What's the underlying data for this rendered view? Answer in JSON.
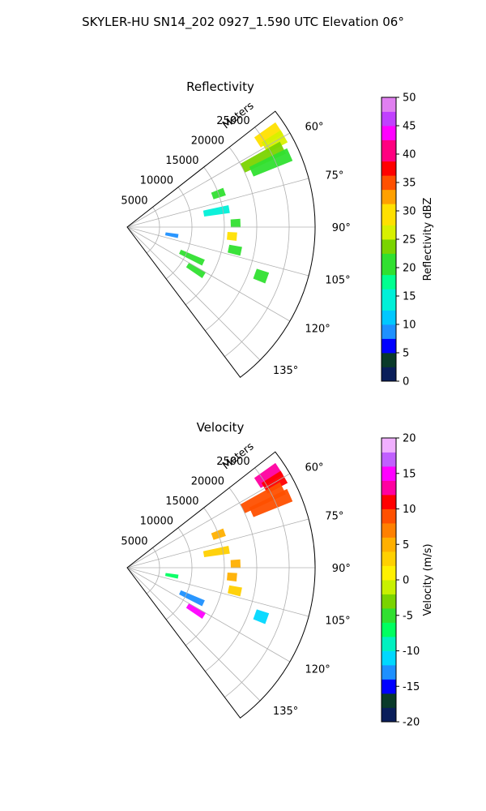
{
  "figure": {
    "title": "SKYLER-HU  SN14_202  0927_1.590 UTC Elevation 06°"
  },
  "chart_data": [
    {
      "type": "heatmap",
      "panel": "reflectivity",
      "projection": "polar-sector",
      "title": "Reflectivity",
      "range_label": "Meters",
      "range_ticks": [
        5000,
        10000,
        15000,
        20000,
        25000
      ],
      "range_limit": [
        0,
        29000
      ],
      "azimuth_ticks": [
        60,
        75,
        90,
        105,
        120,
        135
      ],
      "azimuth_limit": [
        52,
        143
      ],
      "grid": true,
      "colorbar": {
        "label": "Reflectivity dBZ",
        "range": [
          0,
          50
        ],
        "ticks": [
          0,
          5,
          10,
          15,
          20,
          25,
          30,
          35,
          40,
          45,
          50
        ]
      },
      "echoes": [
        {
          "az": 57,
          "r": [
            24000,
            28000
          ],
          "value": 30
        },
        {
          "az": 60,
          "r": [
            24500,
            28000
          ],
          "value": 27
        },
        {
          "az": 63,
          "r": [
            20000,
            27000
          ],
          "value": 22
        },
        {
          "az": 66,
          "r": [
            21000,
            27500
          ],
          "value": 20
        },
        {
          "az": 70,
          "r": [
            14000,
            16000
          ],
          "value": 20
        },
        {
          "az": 80,
          "r": [
            12000,
            16000
          ],
          "value": 14
        },
        {
          "az": 88,
          "r": [
            16000,
            17500
          ],
          "value": 21
        },
        {
          "az": 95,
          "r": [
            15500,
            17000
          ],
          "value": 28
        },
        {
          "az": 102,
          "r": [
            16000,
            18000
          ],
          "value": 21
        },
        {
          "az": 100,
          "r": [
            6000,
            8000
          ],
          "value": 8
        },
        {
          "az": 115,
          "r": [
            9000,
            13000
          ],
          "value": 20
        },
        {
          "az": 122,
          "r": [
            11000,
            14000
          ],
          "value": 20
        },
        {
          "az": 110,
          "r": [
            21000,
            23000
          ],
          "value": 20
        }
      ]
    },
    {
      "type": "heatmap",
      "panel": "velocity",
      "projection": "polar-sector",
      "title": "Velocity",
      "range_label": "Meters",
      "range_ticks": [
        5000,
        10000,
        15000,
        20000,
        25000
      ],
      "range_limit": [
        0,
        29000
      ],
      "azimuth_ticks": [
        60,
        75,
        90,
        105,
        120,
        135
      ],
      "azimuth_limit": [
        52,
        143
      ],
      "grid": true,
      "colorbar": {
        "label": "Velocity (m/s)",
        "range": [
          -20,
          20
        ],
        "ticks": [
          -20,
          -15,
          -10,
          -5,
          0,
          5,
          10,
          15,
          20
        ]
      },
      "echoes": [
        {
          "az": 57,
          "r": [
            24000,
            28000
          ],
          "value": 13
        },
        {
          "az": 60,
          "r": [
            24500,
            28000
          ],
          "value": 11
        },
        {
          "az": 63,
          "r": [
            20000,
            27000
          ],
          "value": 9
        },
        {
          "az": 66,
          "r": [
            21000,
            27500
          ],
          "value": 8
        },
        {
          "az": 70,
          "r": [
            14000,
            16000
          ],
          "value": 5
        },
        {
          "az": 80,
          "r": [
            12000,
            16000
          ],
          "value": 2
        },
        {
          "az": 88,
          "r": [
            16000,
            17500
          ],
          "value": 4
        },
        {
          "az": 95,
          "r": [
            15500,
            17000
          ],
          "value": 5
        },
        {
          "az": 102,
          "r": [
            16000,
            18000
          ],
          "value": 3
        },
        {
          "az": 100,
          "r": [
            6000,
            8000
          ],
          "value": -7
        },
        {
          "az": 115,
          "r": [
            9000,
            13000
          ],
          "value": -13
        },
        {
          "az": 122,
          "r": [
            11000,
            14000
          ],
          "value": 14
        },
        {
          "az": 110,
          "r": [
            21000,
            23000
          ],
          "value": -11
        }
      ]
    }
  ]
}
